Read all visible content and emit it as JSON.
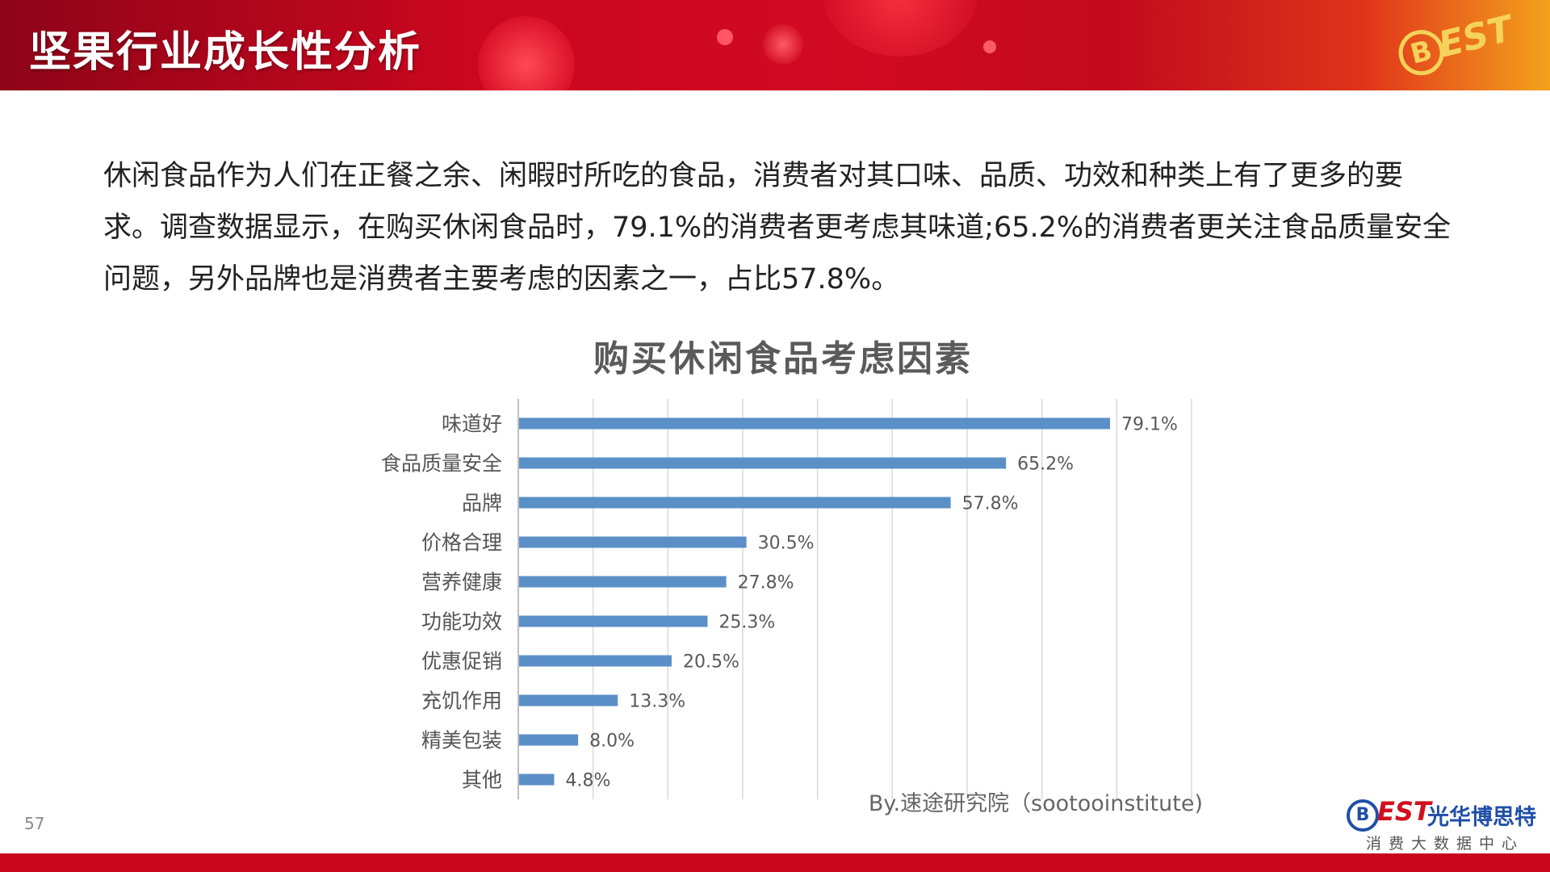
{
  "header": {
    "title": "坚果行业成长性分析",
    "logo_text": "BEST"
  },
  "body": {
    "paragraph": "休闲食品作为人们在正餐之余、闲暇时所吃的食品，消费者对其口味、品质、功效和种类上有了更多的要求。调查数据显示，在购买休闲食品时，79.1%的消费者更考虑其味道;65.2%的消费者更关注食品质量安全问题，另外品牌也是消费者主要考虑的因素之一，占比57.8%。"
  },
  "chart_data": {
    "type": "bar",
    "orientation": "horizontal",
    "title": "购买休闲食品考虑因素",
    "categories": [
      "味道好",
      "食品质量安全",
      "品牌",
      "价格合理",
      "营养健康",
      "功能功效",
      "优惠促销",
      "充饥作用",
      "精美包装",
      "其他"
    ],
    "values": [
      79.1,
      65.2,
      57.8,
      30.5,
      27.8,
      25.3,
      20.5,
      13.3,
      8.0,
      4.8
    ],
    "value_labels": [
      "79.1%",
      "65.2%",
      "57.8%",
      "30.5%",
      "27.8%",
      "25.3%",
      "20.5%",
      "13.3%",
      "8.0%",
      "4.8%"
    ],
    "xlim": [
      0,
      90
    ],
    "grid": "vertical",
    "bar_color": "#5b8fc7",
    "source": "By.速途研究院（sootooinstitute)"
  },
  "footer": {
    "page_number": "57",
    "brand_logo": "BEST",
    "brand_name": "光华博思特",
    "brand_sub": "消费大数据中心",
    "bar_color": "#c8071d"
  }
}
